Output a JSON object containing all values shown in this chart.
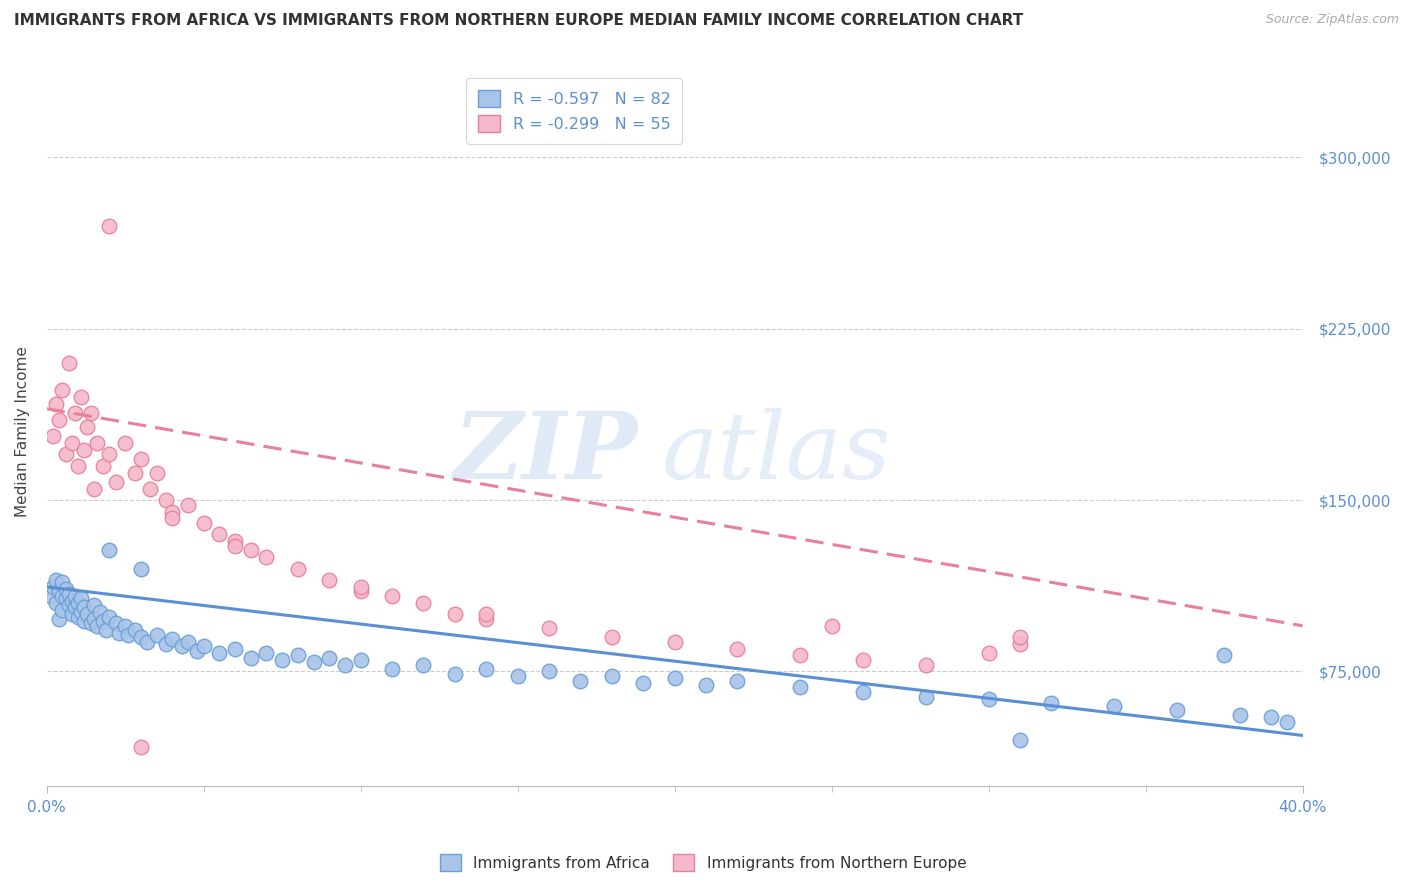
{
  "title": "IMMIGRANTS FROM AFRICA VS IMMIGRANTS FROM NORTHERN EUROPE MEDIAN FAMILY INCOME CORRELATION CHART",
  "source": "Source: ZipAtlas.com",
  "ylabel": "Median Family Income",
  "xlim": [
    0.0,
    0.4
  ],
  "ylim": [
    25000,
    335000
  ],
  "ytick_values": [
    75000,
    150000,
    225000,
    300000
  ],
  "ytick_labels": [
    "$75,000",
    "$150,000",
    "$225,000",
    "$300,000"
  ],
  "africa_color": "#a8c4e8",
  "africa_edge": "#6a9fd8",
  "africa_line": "#5b8fd4",
  "northern_europe_color": "#f5b8cb",
  "northern_europe_edge": "#e8809a",
  "northern_europe_line": "#e8809a",
  "legend_R1": "-0.597",
  "legend_N1": "82",
  "legend_R2": "-0.299",
  "legend_N2": "55",
  "watermark_zip": "ZIP",
  "watermark_atlas": "atlas",
  "background_color": "#ffffff",
  "grid_color": "#cccccc",
  "tick_color": "#5b8fd4",
  "africa_x": [
    0.001,
    0.002,
    0.003,
    0.003,
    0.004,
    0.004,
    0.005,
    0.005,
    0.005,
    0.006,
    0.006,
    0.007,
    0.007,
    0.008,
    0.008,
    0.009,
    0.009,
    0.01,
    0.01,
    0.011,
    0.011,
    0.012,
    0.012,
    0.013,
    0.014,
    0.015,
    0.015,
    0.016,
    0.017,
    0.018,
    0.019,
    0.02,
    0.022,
    0.023,
    0.025,
    0.026,
    0.028,
    0.03,
    0.032,
    0.035,
    0.038,
    0.04,
    0.043,
    0.045,
    0.048,
    0.05,
    0.055,
    0.06,
    0.065,
    0.07,
    0.075,
    0.08,
    0.085,
    0.09,
    0.095,
    0.1,
    0.11,
    0.12,
    0.13,
    0.14,
    0.15,
    0.16,
    0.17,
    0.18,
    0.19,
    0.2,
    0.21,
    0.22,
    0.24,
    0.26,
    0.28,
    0.3,
    0.32,
    0.34,
    0.36,
    0.38,
    0.39,
    0.395,
    0.02,
    0.03,
    0.31,
    0.375
  ],
  "africa_y": [
    108000,
    112000,
    105000,
    115000,
    98000,
    110000,
    102000,
    108000,
    114000,
    107000,
    111000,
    104000,
    109000,
    100000,
    106000,
    103000,
    108000,
    99000,
    105000,
    101000,
    107000,
    97000,
    103000,
    100000,
    96000,
    98000,
    104000,
    95000,
    101000,
    97000,
    93000,
    99000,
    96000,
    92000,
    95000,
    91000,
    93000,
    90000,
    88000,
    91000,
    87000,
    89000,
    86000,
    88000,
    84000,
    86000,
    83000,
    85000,
    81000,
    83000,
    80000,
    82000,
    79000,
    81000,
    78000,
    80000,
    76000,
    78000,
    74000,
    76000,
    73000,
    75000,
    71000,
    73000,
    70000,
    72000,
    69000,
    71000,
    68000,
    66000,
    64000,
    63000,
    61000,
    60000,
    58000,
    56000,
    55000,
    53000,
    128000,
    120000,
    45000,
    82000
  ],
  "ne_x": [
    0.002,
    0.003,
    0.004,
    0.005,
    0.006,
    0.007,
    0.008,
    0.009,
    0.01,
    0.011,
    0.012,
    0.013,
    0.014,
    0.015,
    0.016,
    0.018,
    0.02,
    0.022,
    0.025,
    0.028,
    0.03,
    0.033,
    0.035,
    0.038,
    0.04,
    0.045,
    0.05,
    0.055,
    0.06,
    0.065,
    0.07,
    0.08,
    0.09,
    0.1,
    0.11,
    0.12,
    0.13,
    0.14,
    0.16,
    0.18,
    0.2,
    0.22,
    0.24,
    0.26,
    0.28,
    0.3,
    0.31,
    0.04,
    0.06,
    0.1,
    0.14,
    0.25,
    0.31,
    0.02,
    0.03
  ],
  "ne_y": [
    178000,
    192000,
    185000,
    198000,
    170000,
    210000,
    175000,
    188000,
    165000,
    195000,
    172000,
    182000,
    188000,
    155000,
    175000,
    165000,
    170000,
    158000,
    175000,
    162000,
    168000,
    155000,
    162000,
    150000,
    145000,
    148000,
    140000,
    135000,
    132000,
    128000,
    125000,
    120000,
    115000,
    110000,
    108000,
    105000,
    100000,
    98000,
    94000,
    90000,
    88000,
    85000,
    82000,
    80000,
    78000,
    83000,
    87000,
    142000,
    130000,
    112000,
    100000,
    95000,
    90000,
    270000,
    42000
  ],
  "africa_trend_x": [
    0.0,
    0.4
  ],
  "africa_trend_y": [
    112000,
    47000
  ],
  "ne_trend_x": [
    0.0,
    0.4
  ],
  "ne_trend_y": [
    190000,
    95000
  ]
}
